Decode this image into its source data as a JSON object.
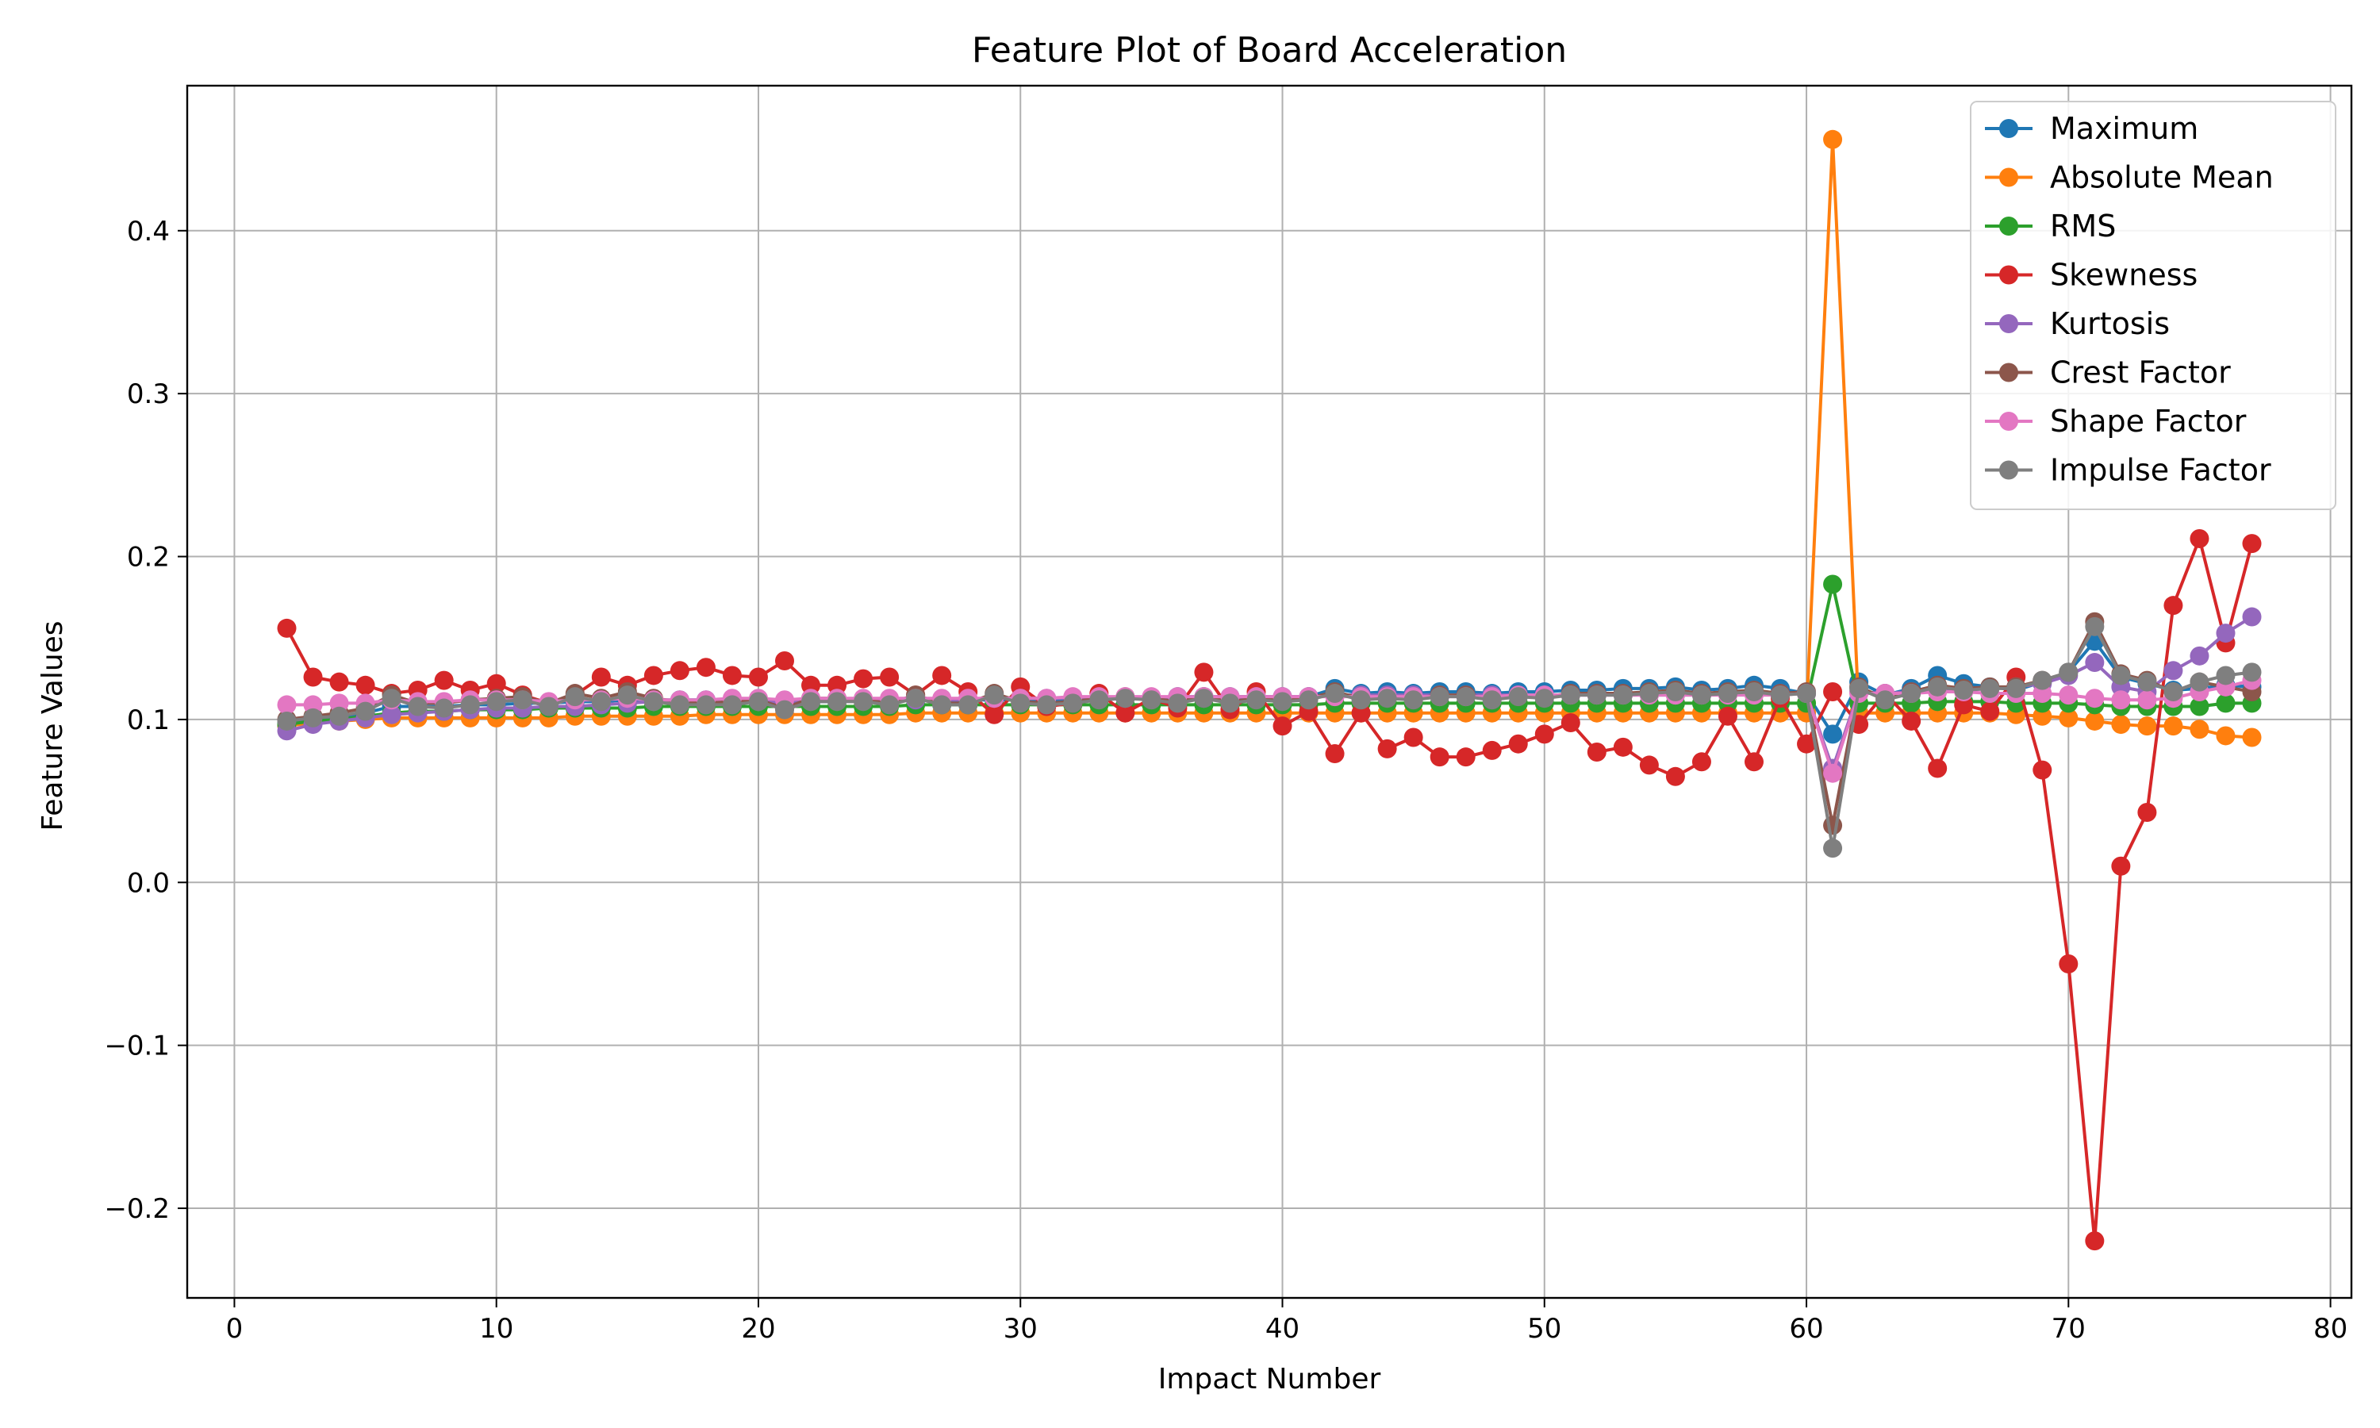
{
  "chart_data": {
    "type": "line",
    "title": "Feature Plot of Board Acceleration",
    "xlabel": "Impact Number",
    "ylabel": "Feature Values",
    "xlim": [
      -1.8,
      80.8
    ],
    "ylim": [
      -0.255,
      0.489
    ],
    "xticks": [
      0,
      10,
      20,
      30,
      40,
      50,
      60,
      70,
      80
    ],
    "xtick_labels": [
      "0",
      "10",
      "20",
      "30",
      "40",
      "50",
      "60",
      "70",
      "80"
    ],
    "yticks": [
      -0.2,
      -0.1,
      0.0,
      0.1,
      0.2,
      0.3,
      0.4
    ],
    "ytick_labels": [
      "−0.2",
      "−0.1",
      "0.0",
      "0.1",
      "0.2",
      "0.3",
      "0.4"
    ],
    "grid": true,
    "legend_position": "top-right",
    "x": [
      2,
      3,
      4,
      5,
      6,
      7,
      8,
      9,
      10,
      11,
      12,
      13,
      14,
      15,
      16,
      17,
      18,
      19,
      20,
      21,
      22,
      23,
      24,
      25,
      26,
      27,
      28,
      29,
      30,
      31,
      32,
      33,
      34,
      35,
      36,
      37,
      38,
      39,
      40,
      41,
      42,
      43,
      44,
      45,
      46,
      47,
      48,
      49,
      50,
      51,
      52,
      53,
      54,
      55,
      56,
      57,
      58,
      59,
      60,
      61,
      62,
      63,
      64,
      65,
      66,
      67,
      68,
      69,
      70,
      71,
      72,
      73,
      74,
      75,
      76,
      77
    ],
    "series": [
      {
        "name": "Maximum",
        "color": "#1f77b4",
        "values": [
          0.098,
          0.099,
          0.101,
          0.104,
          0.108,
          0.108,
          0.108,
          0.109,
          0.109,
          0.11,
          0.11,
          0.111,
          0.111,
          0.112,
          0.112,
          0.112,
          0.112,
          0.112,
          0.112,
          0.11,
          0.111,
          0.111,
          0.112,
          0.112,
          0.112,
          0.111,
          0.112,
          0.112,
          0.112,
          0.112,
          0.112,
          0.112,
          0.113,
          0.113,
          0.114,
          0.114,
          0.114,
          0.114,
          0.114,
          0.114,
          0.119,
          0.116,
          0.117,
          0.116,
          0.117,
          0.117,
          0.116,
          0.117,
          0.117,
          0.118,
          0.118,
          0.119,
          0.119,
          0.12,
          0.118,
          0.119,
          0.121,
          0.119,
          0.116,
          0.091,
          0.123,
          0.115,
          0.119,
          0.127,
          0.122,
          0.12,
          0.118,
          0.123,
          0.129,
          0.148,
          0.126,
          0.122,
          0.118,
          0.119,
          0.121,
          0.12
        ]
      },
      {
        "name": "Absolute Mean",
        "color": "#ff7f0e",
        "values": [
          0.096,
          0.098,
          0.099,
          0.1,
          0.101,
          0.101,
          0.101,
          0.101,
          0.101,
          0.101,
          0.101,
          0.102,
          0.102,
          0.102,
          0.102,
          0.102,
          0.103,
          0.103,
          0.103,
          0.103,
          0.103,
          0.103,
          0.103,
          0.103,
          0.104,
          0.104,
          0.104,
          0.104,
          0.104,
          0.104,
          0.104,
          0.104,
          0.104,
          0.104,
          0.104,
          0.104,
          0.104,
          0.104,
          0.104,
          0.104,
          0.104,
          0.104,
          0.104,
          0.104,
          0.104,
          0.104,
          0.104,
          0.104,
          0.104,
          0.104,
          0.104,
          0.104,
          0.104,
          0.104,
          0.104,
          0.104,
          0.104,
          0.104,
          0.104,
          0.456,
          0.104,
          0.104,
          0.104,
          0.104,
          0.104,
          0.104,
          0.103,
          0.102,
          0.101,
          0.099,
          0.097,
          0.096,
          0.096,
          0.094,
          0.09,
          0.089
        ]
      },
      {
        "name": "RMS",
        "color": "#2ca02c",
        "values": [
          0.097,
          0.099,
          0.1,
          0.102,
          0.104,
          0.105,
          0.105,
          0.106,
          0.106,
          0.106,
          0.107,
          0.107,
          0.107,
          0.107,
          0.108,
          0.108,
          0.108,
          0.108,
          0.108,
          0.108,
          0.108,
          0.108,
          0.108,
          0.108,
          0.109,
          0.109,
          0.109,
          0.109,
          0.109,
          0.109,
          0.109,
          0.109,
          0.109,
          0.109,
          0.109,
          0.109,
          0.109,
          0.109,
          0.109,
          0.109,
          0.11,
          0.11,
          0.11,
          0.11,
          0.11,
          0.11,
          0.11,
          0.11,
          0.11,
          0.11,
          0.11,
          0.11,
          0.11,
          0.11,
          0.11,
          0.11,
          0.11,
          0.11,
          0.11,
          0.183,
          0.11,
          0.11,
          0.11,
          0.111,
          0.111,
          0.111,
          0.11,
          0.11,
          0.11,
          0.109,
          0.108,
          0.108,
          0.108,
          0.108,
          0.11,
          0.11
        ]
      },
      {
        "name": "Skewness",
        "color": "#d62728",
        "values": [
          0.156,
          0.126,
          0.123,
          0.121,
          0.116,
          0.118,
          0.124,
          0.118,
          0.122,
          0.115,
          0.11,
          0.115,
          0.126,
          0.121,
          0.127,
          0.13,
          0.132,
          0.127,
          0.126,
          0.136,
          0.121,
          0.121,
          0.125,
          0.126,
          0.115,
          0.127,
          0.117,
          0.103,
          0.12,
          0.108,
          0.11,
          0.116,
          0.104,
          0.113,
          0.107,
          0.129,
          0.106,
          0.117,
          0.096,
          0.105,
          0.079,
          0.104,
          0.082,
          0.089,
          0.077,
          0.077,
          0.081,
          0.085,
          0.091,
          0.098,
          0.08,
          0.083,
          0.072,
          0.065,
          0.074,
          0.102,
          0.074,
          0.113,
          0.085,
          0.117,
          0.097,
          0.116,
          0.099,
          0.07,
          0.109,
          0.105,
          0.126,
          0.069,
          -0.05,
          -0.22,
          0.01,
          0.043,
          0.17,
          0.211,
          0.147,
          0.208
        ]
      },
      {
        "name": "Kurtosis",
        "color": "#9467bd",
        "values": [
          0.093,
          0.097,
          0.099,
          0.101,
          0.103,
          0.104,
          0.105,
          0.106,
          0.107,
          0.107,
          0.108,
          0.108,
          0.109,
          0.11,
          0.111,
          0.111,
          0.111,
          0.111,
          0.111,
          0.111,
          0.112,
          0.112,
          0.112,
          0.112,
          0.112,
          0.112,
          0.112,
          0.113,
          0.113,
          0.113,
          0.113,
          0.113,
          0.113,
          0.113,
          0.113,
          0.113,
          0.113,
          0.114,
          0.114,
          0.114,
          0.115,
          0.115,
          0.115,
          0.115,
          0.115,
          0.115,
          0.115,
          0.115,
          0.115,
          0.115,
          0.115,
          0.115,
          0.115,
          0.115,
          0.115,
          0.116,
          0.116,
          0.116,
          0.116,
          0.07,
          0.117,
          0.116,
          0.117,
          0.118,
          0.118,
          0.119,
          0.12,
          0.122,
          0.127,
          0.135,
          0.12,
          0.117,
          0.13,
          0.139,
          0.153,
          0.163
        ]
      },
      {
        "name": "Crest Factor",
        "color": "#8c564b",
        "values": [
          0.1,
          0.102,
          0.104,
          0.107,
          0.115,
          0.11,
          0.11,
          0.112,
          0.113,
          0.114,
          0.11,
          0.116,
          0.113,
          0.117,
          0.113,
          0.111,
          0.11,
          0.111,
          0.112,
          0.107,
          0.113,
          0.113,
          0.112,
          0.11,
          0.115,
          0.11,
          0.11,
          0.116,
          0.111,
          0.11,
          0.111,
          0.113,
          0.114,
          0.113,
          0.111,
          0.114,
          0.111,
          0.113,
          0.112,
          0.113,
          0.117,
          0.113,
          0.114,
          0.113,
          0.115,
          0.115,
          0.113,
          0.115,
          0.114,
          0.116,
          0.116,
          0.116,
          0.117,
          0.118,
          0.116,
          0.117,
          0.118,
          0.116,
          0.117,
          0.035,
          0.12,
          0.113,
          0.117,
          0.121,
          0.119,
          0.12,
          0.12,
          0.124,
          0.129,
          0.16,
          0.128,
          0.124,
          0.117,
          0.123,
          0.12,
          0.117
        ]
      },
      {
        "name": "Shape Factor",
        "color": "#e377c2",
        "values": [
          0.109,
          0.109,
          0.11,
          0.11,
          0.112,
          0.111,
          0.111,
          0.112,
          0.112,
          0.112,
          0.111,
          0.112,
          0.112,
          0.113,
          0.112,
          0.112,
          0.112,
          0.113,
          0.113,
          0.112,
          0.113,
          0.113,
          0.113,
          0.113,
          0.113,
          0.113,
          0.113,
          0.113,
          0.113,
          0.113,
          0.114,
          0.114,
          0.114,
          0.114,
          0.114,
          0.114,
          0.114,
          0.114,
          0.114,
          0.114,
          0.114,
          0.114,
          0.114,
          0.114,
          0.114,
          0.114,
          0.114,
          0.115,
          0.115,
          0.115,
          0.115,
          0.115,
          0.115,
          0.115,
          0.115,
          0.115,
          0.115,
          0.115,
          0.116,
          0.067,
          0.116,
          0.116,
          0.116,
          0.117,
          0.117,
          0.116,
          0.116,
          0.116,
          0.115,
          0.113,
          0.112,
          0.112,
          0.113,
          0.117,
          0.12,
          0.124
        ]
      },
      {
        "name": "Impulse Factor",
        "color": "#7f7f7f",
        "values": [
          0.099,
          0.101,
          0.102,
          0.105,
          0.113,
          0.108,
          0.107,
          0.109,
          0.111,
          0.112,
          0.108,
          0.114,
          0.111,
          0.115,
          0.111,
          0.109,
          0.109,
          0.109,
          0.111,
          0.106,
          0.111,
          0.111,
          0.111,
          0.109,
          0.113,
          0.109,
          0.109,
          0.115,
          0.11,
          0.109,
          0.11,
          0.112,
          0.113,
          0.112,
          0.11,
          0.113,
          0.11,
          0.112,
          0.111,
          0.112,
          0.116,
          0.112,
          0.113,
          0.112,
          0.114,
          0.114,
          0.112,
          0.114,
          0.113,
          0.115,
          0.115,
          0.115,
          0.116,
          0.117,
          0.115,
          0.116,
          0.117,
          0.115,
          0.116,
          0.021,
          0.119,
          0.112,
          0.116,
          0.12,
          0.118,
          0.119,
          0.119,
          0.124,
          0.129,
          0.157,
          0.127,
          0.123,
          0.117,
          0.123,
          0.127,
          0.129
        ]
      }
    ]
  }
}
